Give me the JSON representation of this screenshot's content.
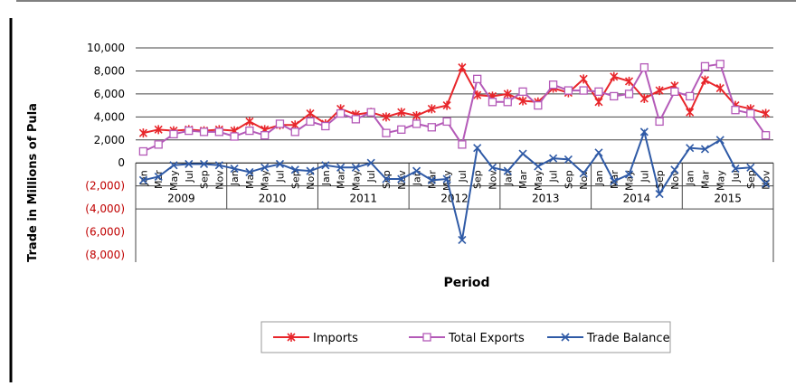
{
  "chart_data": {
    "type": "line",
    "title": "",
    "xlabel": "Period",
    "ylabel": "Trade in Millions of Pula",
    "ylim": [
      -8000,
      10000
    ],
    "y_ticks": [
      {
        "value": 10000,
        "label": "10,000"
      },
      {
        "value": 8000,
        "label": "8,000"
      },
      {
        "value": 6000,
        "label": "6,000"
      },
      {
        "value": 4000,
        "label": "4,000"
      },
      {
        "value": 2000,
        "label": "2,000"
      },
      {
        "value": 0,
        "label": "0"
      },
      {
        "value": -2000,
        "label": "(2,000)"
      },
      {
        "value": -4000,
        "label": "(4,000)"
      },
      {
        "value": -6000,
        "label": "(6,000)"
      },
      {
        "value": -8000,
        "label": "(8,000)"
      }
    ],
    "negative_label_color": "#c00000",
    "gridlines": true,
    "legend_position": "bottom",
    "years": [
      "2009",
      "2010",
      "2011",
      "2012",
      "2013",
      "2014",
      "2015"
    ],
    "month_labels": [
      "Jan",
      "Mar",
      "May",
      "Jul",
      "Sep",
      "Nov"
    ],
    "x": [
      "Jan 2009",
      "Mar 2009",
      "May 2009",
      "Jul 2009",
      "Sep 2009",
      "Nov 2009",
      "Jan 2010",
      "Mar 2010",
      "May 2010",
      "Jul 2010",
      "Sep 2010",
      "Nov 2010",
      "Jan 2011",
      "Mar 2011",
      "May 2011",
      "Jul 2011",
      "Sep 2011",
      "Nov 2011",
      "Jan 2012",
      "Mar 2012",
      "May 2012",
      "Jul 2012",
      "Sep 2012",
      "Nov 2012",
      "Jan 2013",
      "Mar 2013",
      "May 2013",
      "Jul 2013",
      "Sep 2013",
      "Nov 2013",
      "Jan 2014",
      "Mar 2014",
      "May 2014",
      "Jul 2014",
      "Sep 2014",
      "Nov 2014",
      "Jan 2015",
      "Mar 2015",
      "May 2015",
      "Jul 2015",
      "Sep 2015",
      "Nov 2015"
    ],
    "series": [
      {
        "name": "Imports",
        "color": "#e8262b",
        "marker": "star",
        "values": [
          2600,
          2900,
          2800,
          2900,
          2800,
          2900,
          2800,
          3600,
          2900,
          3300,
          3300,
          4300,
          3400,
          4700,
          4200,
          4400,
          4000,
          4400,
          4100,
          4700,
          5000,
          8300,
          5900,
          5800,
          6000,
          5400,
          5300,
          6500,
          6100,
          7300,
          5300,
          7500,
          7100,
          5600,
          6300,
          6700,
          4400,
          7200,
          6500,
          5000,
          4700,
          4300
        ]
      },
      {
        "name": "Total Exports",
        "color": "#b45ab8",
        "marker": "square",
        "values": [
          1000,
          1600,
          2500,
          2800,
          2700,
          2700,
          2300,
          2800,
          2400,
          3400,
          2700,
          3600,
          3200,
          4300,
          3800,
          4400,
          2600,
          2900,
          3400,
          3100,
          3600,
          1600,
          7300,
          5300,
          5300,
          6200,
          5000,
          6800,
          6300,
          6300,
          6200,
          5800,
          6000,
          8300,
          3600,
          6200,
          5800,
          8400,
          8600,
          4600,
          4300,
          2400
        ]
      },
      {
        "name": "Trade Balance",
        "color": "#2f5aa6",
        "marker": "x",
        "values": [
          -1500,
          -1200,
          -200,
          -100,
          -100,
          -200,
          -500,
          -800,
          -400,
          -100,
          -600,
          -700,
          -200,
          -400,
          -400,
          0,
          -1400,
          -1400,
          -700,
          -1500,
          -1400,
          -6700,
          1300,
          -400,
          -700,
          800,
          -300,
          400,
          300,
          -900,
          900,
          -1600,
          -1000,
          2700,
          -2700,
          -600,
          1300,
          1200,
          2000,
          -500,
          -400,
          -1800
        ]
      }
    ]
  }
}
